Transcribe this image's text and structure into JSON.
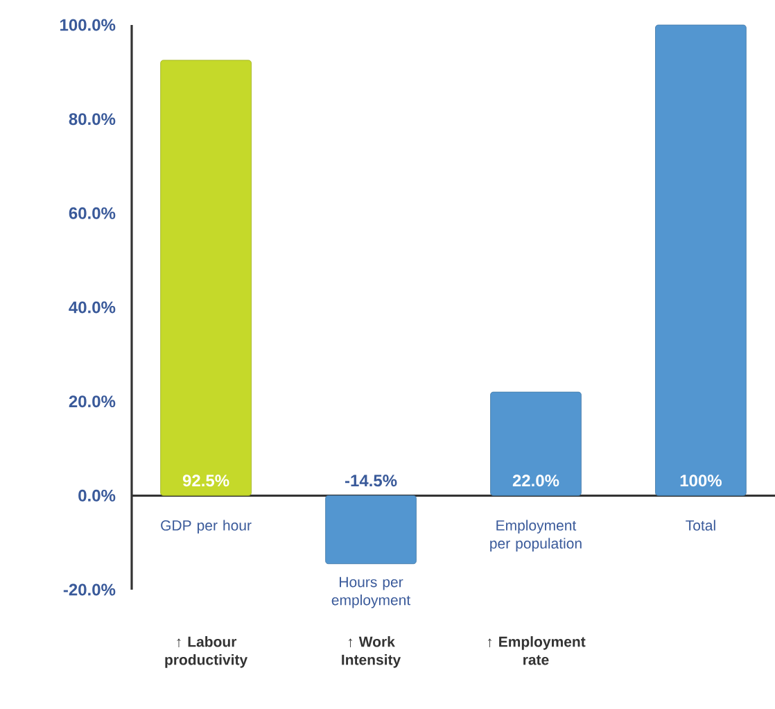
{
  "chart_data": {
    "type": "bar",
    "categories": [
      "GDP per hour",
      "Hours per employment",
      "Employment per population",
      "Total"
    ],
    "values": [
      92.5,
      -14.5,
      22.0,
      100
    ],
    "colors": [
      "#c5d92a",
      "#5396d0",
      "#5396d0",
      "#5396d0"
    ],
    "value_labels": [
      "92.5%",
      "-14.5%",
      "22.0%",
      "100%"
    ],
    "ylim": [
      -20,
      100
    ],
    "yticks": [
      {
        "value": -20,
        "label": "-20.0%"
      },
      {
        "value": 0,
        "label": "0.0%"
      },
      {
        "value": 20,
        "label": "20.0%"
      },
      {
        "value": 40,
        "label": "40.0%"
      },
      {
        "value": 60,
        "label": "60.0%"
      },
      {
        "value": 80,
        "label": "80.0%"
      },
      {
        "value": 100,
        "label": "100.0%"
      }
    ],
    "annotations": [
      "↑ Labour productivity",
      "↑ Work Intensity",
      "↑ Employment rate"
    ]
  }
}
